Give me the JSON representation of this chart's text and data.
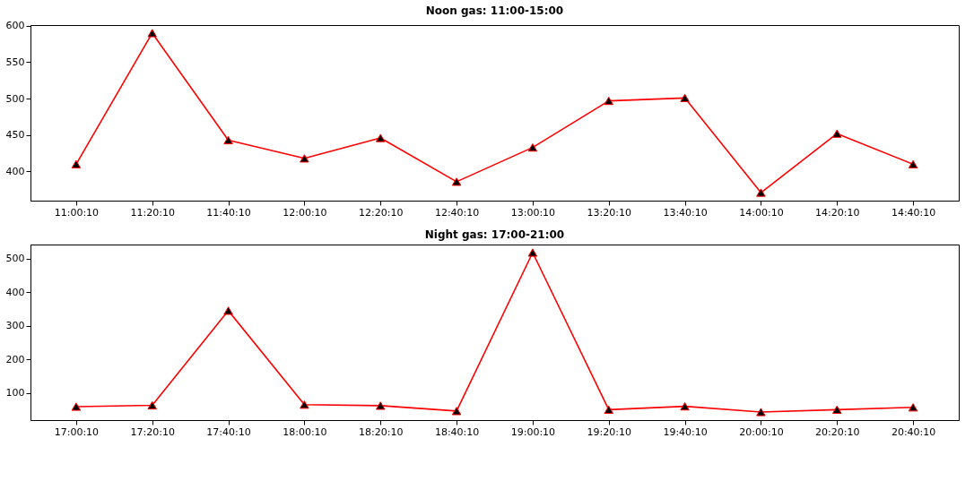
{
  "chart_data": [
    {
      "type": "line",
      "title": "Noon gas: 11:00-15:00",
      "categories": [
        "11:00:10",
        "11:20:10",
        "11:40:10",
        "12:00:10",
        "12:20:10",
        "12:40:10",
        "13:00:10",
        "13:20:10",
        "13:40:10",
        "14:00:10",
        "14:20:10",
        "14:40:10"
      ],
      "series": [
        {
          "color": "#ff0000",
          "values": [
            410,
            590,
            443,
            418,
            446,
            386,
            433,
            497,
            501,
            371,
            452,
            410
          ]
        }
      ],
      "ylim": [
        360,
        601
      ],
      "yticks": [
        400,
        450,
        500,
        550,
        600
      ],
      "marker": "triangle",
      "line_style": "solid"
    },
    {
      "type": "line",
      "title": "Night gas: 17:00-21:00",
      "categories": [
        "17:00:10",
        "17:20:10",
        "17:40:10",
        "18:00:10",
        "18:20:10",
        "18:40:10",
        "19:00:10",
        "19:20:10",
        "19:40:10",
        "20:00:10",
        "20:20:10",
        "20:40:10"
      ],
      "series": [
        {
          "color": "#ff0000",
          "values": [
            59,
            63,
            345,
            65,
            62,
            46,
            518,
            50,
            60,
            43,
            50,
            57
          ]
        }
      ],
      "ylim": [
        19,
        542
      ],
      "yticks": [
        100,
        200,
        300,
        400,
        500
      ],
      "marker": "triangle",
      "line_style": "solid"
    }
  ]
}
